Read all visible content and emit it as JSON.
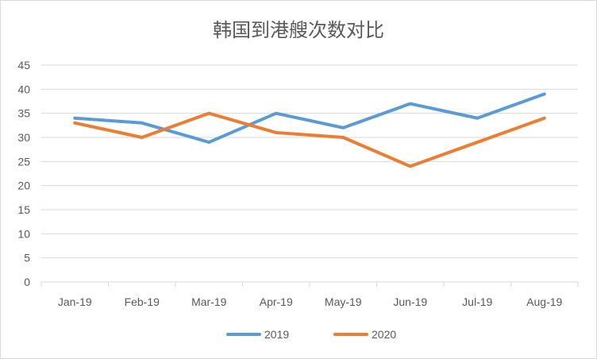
{
  "chart_data": {
    "type": "line",
    "title": "韩国到港艘次数对比",
    "xlabel": "",
    "ylabel": "",
    "categories": [
      "Jan-19",
      "Feb-19",
      "Mar-19",
      "Apr-19",
      "May-19",
      "Jun-19",
      "Jul-19",
      "Aug-19"
    ],
    "ylim": [
      0,
      45
    ],
    "yticks": [
      0,
      5,
      10,
      15,
      20,
      25,
      30,
      35,
      40,
      45
    ],
    "grid": true,
    "legend_position": "bottom",
    "series": [
      {
        "name": "2019",
        "color": "#5b9bd5",
        "values": [
          34,
          33,
          29,
          35,
          32,
          37,
          34,
          39
        ]
      },
      {
        "name": "2020",
        "color": "#ed7d31",
        "values": [
          33,
          30,
          35,
          31,
          30,
          24,
          29,
          34
        ]
      }
    ]
  }
}
